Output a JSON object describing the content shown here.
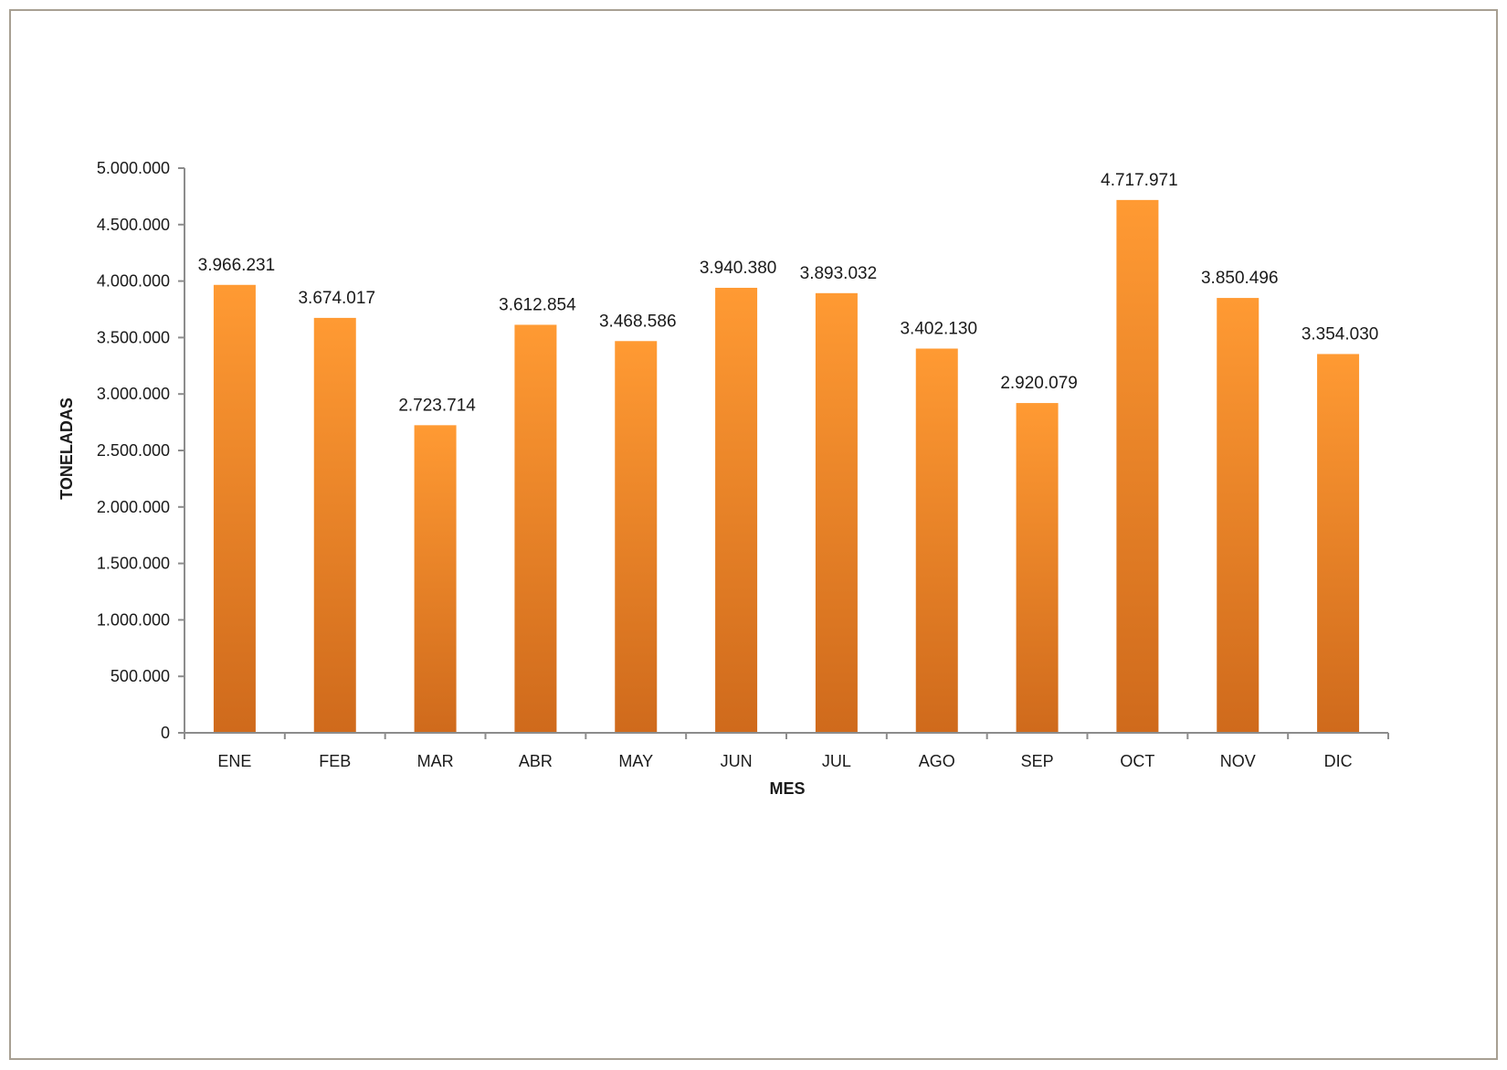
{
  "chart_data": {
    "type": "bar",
    "title": "",
    "xlabel": "MES",
    "ylabel": "TONELADAS",
    "categories": [
      "ENE",
      "FEB",
      "MAR",
      "ABR",
      "MAY",
      "JUN",
      "JUL",
      "AGO",
      "SEP",
      "OCT",
      "NOV",
      "DIC"
    ],
    "values": [
      3966231,
      3674017,
      2723714,
      3612854,
      3468586,
      3940380,
      3893032,
      3402130,
      2920079,
      4717971,
      3850496,
      3354030
    ],
    "value_labels": [
      "3.966.231",
      "3.674.017",
      "2.723.714",
      "3.612.854",
      "3.468.586",
      "3.940.380",
      "3.893.032",
      "3.402.130",
      "2.920.079",
      "4.717.971",
      "3.850.496",
      "3.354.030"
    ],
    "ylim": [
      0,
      5000000
    ],
    "yticks": [
      0,
      500000,
      1000000,
      1500000,
      2000000,
      2500000,
      3000000,
      3500000,
      4000000,
      4500000,
      5000000
    ],
    "ytick_labels": [
      "0",
      "500.000",
      "1.000.000",
      "1.500.000",
      "2.000.000",
      "2.500.000",
      "3.000.000",
      "3.500.000",
      "4.000.000",
      "4.500.000",
      "5.000.000"
    ],
    "grid": false,
    "legend": "none",
    "colors": {
      "bar_top": "#ff9a33",
      "bar_bottom": "#cf6a1c",
      "axis": "#8c8c8c",
      "frame": "#a8a093"
    }
  }
}
